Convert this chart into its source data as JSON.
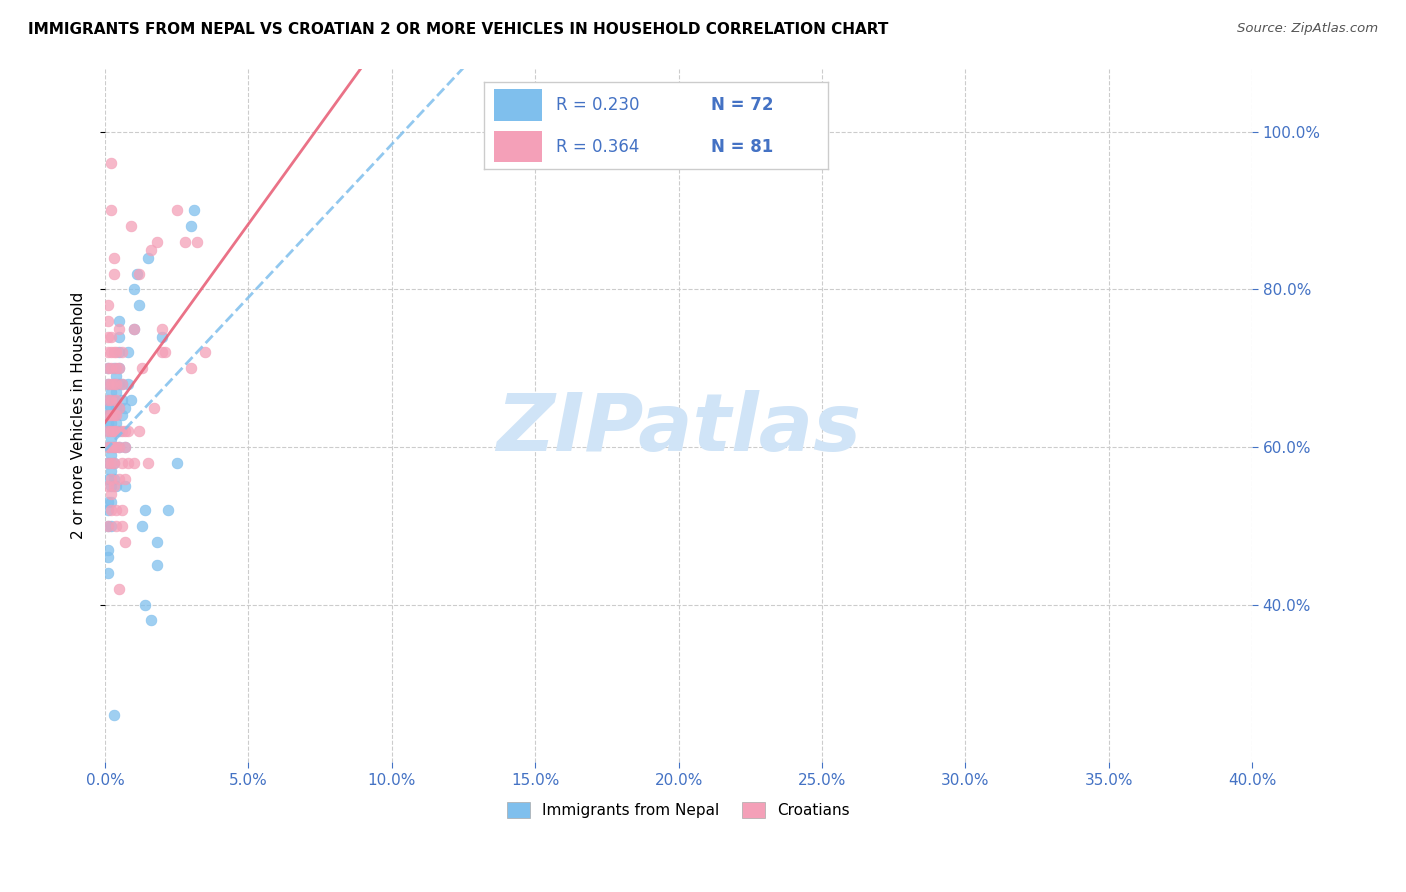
{
  "title": "IMMIGRANTS FROM NEPAL VS CROATIAN 2 OR MORE VEHICLES IN HOUSEHOLD CORRELATION CHART",
  "source": "Source: ZipAtlas.com",
  "ylabel": "2 or more Vehicles in Household",
  "xmin": 0.0,
  "xmax": 0.4,
  "ymin": 0.2,
  "ymax": 1.08,
  "legend_nepal": {
    "R": 0.23,
    "N": 72
  },
  "legend_croatian": {
    "R": 0.364,
    "N": 81
  },
  "nepal_color": "#7fbfed",
  "croatian_color": "#f4a0b8",
  "nepal_line_color": "#7fbfed",
  "croatian_line_color": "#e8637a",
  "legend_text_color": "#4472c4",
  "watermark_color": "#d0e4f7",
  "watermark": "ZIPatlas",
  "nepal_points": [
    [
      0.001,
      0.47
    ],
    [
      0.001,
      0.46
    ],
    [
      0.001,
      0.56
    ],
    [
      0.001,
      0.58
    ],
    [
      0.001,
      0.6
    ],
    [
      0.001,
      0.62
    ],
    [
      0.001,
      0.63
    ],
    [
      0.001,
      0.64
    ],
    [
      0.001,
      0.65
    ],
    [
      0.001,
      0.66
    ],
    [
      0.001,
      0.68
    ],
    [
      0.001,
      0.7
    ],
    [
      0.001,
      0.5
    ],
    [
      0.001,
      0.52
    ],
    [
      0.001,
      0.53
    ],
    [
      0.002,
      0.55
    ],
    [
      0.002,
      0.57
    ],
    [
      0.002,
      0.59
    ],
    [
      0.002,
      0.61
    ],
    [
      0.002,
      0.63
    ],
    [
      0.002,
      0.65
    ],
    [
      0.002,
      0.67
    ],
    [
      0.002,
      0.5
    ],
    [
      0.002,
      0.53
    ],
    [
      0.003,
      0.6
    ],
    [
      0.003,
      0.62
    ],
    [
      0.003,
      0.64
    ],
    [
      0.003,
      0.66
    ],
    [
      0.003,
      0.68
    ],
    [
      0.003,
      0.7
    ],
    [
      0.003,
      0.56
    ],
    [
      0.003,
      0.58
    ],
    [
      0.004,
      0.65
    ],
    [
      0.004,
      0.67
    ],
    [
      0.004,
      0.69
    ],
    [
      0.004,
      0.63
    ],
    [
      0.004,
      0.55
    ],
    [
      0.005,
      0.6
    ],
    [
      0.005,
      0.65
    ],
    [
      0.005,
      0.7
    ],
    [
      0.005,
      0.72
    ],
    [
      0.005,
      0.74
    ],
    [
      0.005,
      0.76
    ],
    [
      0.005,
      0.68
    ],
    [
      0.005,
      0.62
    ],
    [
      0.006,
      0.64
    ],
    [
      0.006,
      0.66
    ],
    [
      0.006,
      0.68
    ],
    [
      0.007,
      0.6
    ],
    [
      0.007,
      0.65
    ],
    [
      0.007,
      0.55
    ],
    [
      0.008,
      0.68
    ],
    [
      0.008,
      0.72
    ],
    [
      0.009,
      0.66
    ],
    [
      0.01,
      0.75
    ],
    [
      0.01,
      0.8
    ],
    [
      0.011,
      0.82
    ],
    [
      0.012,
      0.78
    ],
    [
      0.013,
      0.5
    ],
    [
      0.014,
      0.52
    ],
    [
      0.014,
      0.4
    ],
    [
      0.015,
      0.84
    ],
    [
      0.016,
      0.38
    ],
    [
      0.018,
      0.45
    ],
    [
      0.018,
      0.48
    ],
    [
      0.02,
      0.74
    ],
    [
      0.022,
      0.52
    ],
    [
      0.025,
      0.58
    ],
    [
      0.03,
      0.88
    ],
    [
      0.031,
      0.9
    ],
    [
      0.003,
      0.26
    ],
    [
      0.001,
      0.44
    ]
  ],
  "croatian_points": [
    [
      0.001,
      0.5
    ],
    [
      0.001,
      0.55
    ],
    [
      0.001,
      0.58
    ],
    [
      0.001,
      0.6
    ],
    [
      0.001,
      0.62
    ],
    [
      0.001,
      0.64
    ],
    [
      0.001,
      0.66
    ],
    [
      0.001,
      0.68
    ],
    [
      0.001,
      0.7
    ],
    [
      0.001,
      0.72
    ],
    [
      0.001,
      0.74
    ],
    [
      0.001,
      0.76
    ],
    [
      0.001,
      0.78
    ],
    [
      0.002,
      0.52
    ],
    [
      0.002,
      0.54
    ],
    [
      0.002,
      0.56
    ],
    [
      0.002,
      0.58
    ],
    [
      0.002,
      0.6
    ],
    [
      0.002,
      0.62
    ],
    [
      0.002,
      0.64
    ],
    [
      0.002,
      0.66
    ],
    [
      0.002,
      0.68
    ],
    [
      0.002,
      0.7
    ],
    [
      0.002,
      0.72
    ],
    [
      0.002,
      0.74
    ],
    [
      0.002,
      0.9
    ],
    [
      0.003,
      0.55
    ],
    [
      0.003,
      0.58
    ],
    [
      0.003,
      0.6
    ],
    [
      0.003,
      0.62
    ],
    [
      0.003,
      0.64
    ],
    [
      0.003,
      0.68
    ],
    [
      0.003,
      0.72
    ],
    [
      0.003,
      0.82
    ],
    [
      0.003,
      0.84
    ],
    [
      0.004,
      0.6
    ],
    [
      0.004,
      0.62
    ],
    [
      0.004,
      0.64
    ],
    [
      0.004,
      0.66
    ],
    [
      0.004,
      0.68
    ],
    [
      0.004,
      0.7
    ],
    [
      0.004,
      0.72
    ],
    [
      0.004,
      0.5
    ],
    [
      0.004,
      0.52
    ],
    [
      0.005,
      0.56
    ],
    [
      0.005,
      0.6
    ],
    [
      0.005,
      0.65
    ],
    [
      0.005,
      0.7
    ],
    [
      0.005,
      0.75
    ],
    [
      0.005,
      0.42
    ],
    [
      0.006,
      0.58
    ],
    [
      0.006,
      0.62
    ],
    [
      0.006,
      0.68
    ],
    [
      0.006,
      0.72
    ],
    [
      0.006,
      0.5
    ],
    [
      0.006,
      0.52
    ],
    [
      0.007,
      0.6
    ],
    [
      0.007,
      0.62
    ],
    [
      0.007,
      0.56
    ],
    [
      0.007,
      0.48
    ],
    [
      0.008,
      0.58
    ],
    [
      0.008,
      0.62
    ],
    [
      0.009,
      0.88
    ],
    [
      0.01,
      0.75
    ],
    [
      0.01,
      0.58
    ],
    [
      0.012,
      0.62
    ],
    [
      0.012,
      0.82
    ],
    [
      0.013,
      0.7
    ],
    [
      0.015,
      0.58
    ],
    [
      0.016,
      0.85
    ],
    [
      0.017,
      0.65
    ],
    [
      0.018,
      0.86
    ],
    [
      0.02,
      0.75
    ],
    [
      0.02,
      0.72
    ],
    [
      0.021,
      0.72
    ],
    [
      0.025,
      0.9
    ],
    [
      0.028,
      0.86
    ],
    [
      0.03,
      0.7
    ],
    [
      0.032,
      0.86
    ],
    [
      0.035,
      0.72
    ],
    [
      0.002,
      0.96
    ]
  ],
  "yticks": [
    0.4,
    0.6,
    0.8,
    1.0
  ],
  "xticks": [
    0.0,
    0.05,
    0.1,
    0.15,
    0.2,
    0.25,
    0.3,
    0.35,
    0.4
  ],
  "background_color": "#ffffff"
}
